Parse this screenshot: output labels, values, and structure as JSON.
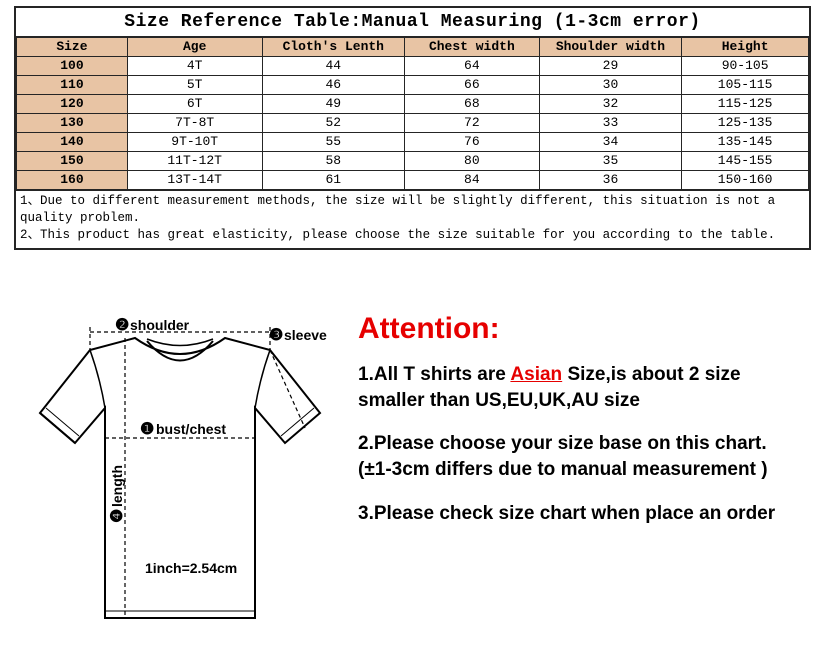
{
  "table": {
    "title": "Size Reference Table:Manual Measuring (1-3cm error)",
    "columns": [
      "Size",
      "Age",
      "Cloth's Lenth",
      "Chest width",
      "Shoulder width",
      "Height"
    ],
    "col_widths_pct": [
      14,
      17,
      18,
      17,
      18,
      16
    ],
    "header_bg": "#e8c4a4",
    "size_col_bg": "#e8c4a4",
    "border_color": "#252525",
    "font": "Courier New",
    "rows": [
      [
        "100",
        "4T",
        "44",
        "64",
        "29",
        "90-105"
      ],
      [
        "110",
        "5T",
        "46",
        "66",
        "30",
        "105-115"
      ],
      [
        "120",
        "6T",
        "49",
        "68",
        "32",
        "115-125"
      ],
      [
        "130",
        "7T-8T",
        "52",
        "72",
        "33",
        "125-135"
      ],
      [
        "140",
        "9T-10T",
        "55",
        "76",
        "34",
        "135-145"
      ],
      [
        "150",
        "11T-12T",
        "58",
        "80",
        "35",
        "145-155"
      ],
      [
        "160",
        "13T-14T",
        "61",
        "84",
        "36",
        "150-160"
      ]
    ],
    "notes": [
      "1、Due to different measurement methods, the size will be slightly different, this situation is not a quality problem.",
      "2、This product has great elasticity, please choose the size suitable for you according to the table."
    ]
  },
  "diagram": {
    "markers": {
      "bust": {
        "num": "❶",
        "label": "bust/chest"
      },
      "shoulder": {
        "num": "❷",
        "label": "shoulder"
      },
      "sleeve": {
        "num": "❸",
        "label": "sleeve"
      },
      "length": {
        "num": "❹",
        "label": "length"
      }
    },
    "conversion": "1inch=2.54cm",
    "stroke": "#000000",
    "fill": "#ffffff",
    "marker_color": "#000000"
  },
  "attention": {
    "heading": "Attention:",
    "heading_color": "#e60000",
    "items": [
      {
        "pre": "1.All T shirts are ",
        "highlight": "Asian",
        "post": " Size,is about 2 size smaller than US,EU,UK,AU size"
      },
      {
        "text": "2.Please choose your size base on this chart.(±1-3cm differs due to manual measurement )"
      },
      {
        "text": "3.Please check size chart when place an order"
      }
    ],
    "highlight_color": "#e60000",
    "text_fontsize": 19
  }
}
